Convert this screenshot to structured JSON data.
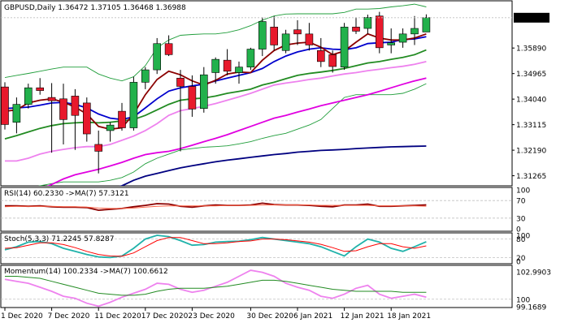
{
  "colors": {
    "bull": "#22b14c",
    "bear": "#e8192c",
    "candle_outline": "#000000",
    "bb": "#1f9d3a",
    "ma_red": "#8b0000",
    "ma_blue": "#0000cd",
    "ma_green": "#228b22",
    "ma_pink": "#ee82ee",
    "ma_magenta": "#e000e0",
    "ma_navy": "#000080",
    "price_label_bg": "#000000",
    "price_label_fg": "#ffffff",
    "rsi_line": "#8b0000",
    "rsi_ma": "#ff6347",
    "stoch_main": "#20b2aa",
    "stoch_signal": "#ff0000",
    "mom_main": "#ee82ee",
    "mom_ma": "#228b22",
    "grid_dash": "#c0c0c0",
    "frame": "#000000"
  },
  "chart_data": [
    {
      "type": "candlestick",
      "title": "GBPUSD,Daily  1.36472 1.37105 1.36468 1.36988",
      "ylim": [
        1.309,
        1.376
      ],
      "yticks": [
        "1.36988",
        "1.35890",
        "1.34965",
        "1.34040",
        "1.33115",
        "1.32190",
        "1.31265"
      ],
      "last_price": "1.36988",
      "x_labels": [
        {
          "index": 0,
          "label": "1 Dec 2020"
        },
        {
          "index": 4,
          "label": "7 Dec 2020"
        },
        {
          "index": 8,
          "label": "11 Dec 2020"
        },
        {
          "index": 12,
          "label": "17 Dec 2020"
        },
        {
          "index": 16,
          "label": "23 Dec 2020"
        },
        {
          "index": 21,
          "label": "30 Dec 2020"
        },
        {
          "index": 25,
          "label": "6 Jan 2021"
        },
        {
          "index": 29,
          "label": "12 Jan 2021"
        },
        {
          "index": 33,
          "label": "18 Jan 2021"
        }
      ],
      "ohlc": [
        [
          1.3448,
          1.3465,
          1.3294,
          1.3312
        ],
        [
          1.332,
          1.341,
          1.328,
          1.3385
        ],
        [
          1.3385,
          1.346,
          1.337,
          1.3445
        ],
        [
          1.3445,
          1.348,
          1.342,
          1.3435
        ],
        [
          1.341,
          1.3462,
          1.321,
          1.3398
        ],
        [
          1.3405,
          1.346,
          1.324,
          1.333
        ],
        [
          1.3415,
          1.344,
          1.322,
          1.3345
        ],
        [
          1.339,
          1.341,
          1.325,
          1.3278
        ],
        [
          1.324,
          1.329,
          1.3135,
          1.3215
        ],
        [
          1.329,
          1.332,
          1.325,
          1.331
        ],
        [
          1.336,
          1.339,
          1.329,
          1.33
        ],
        [
          1.33,
          1.3485,
          1.329,
          1.3465
        ],
        [
          1.3465,
          1.352,
          1.344,
          1.351
        ],
        [
          1.351,
          1.3625,
          1.3495,
          1.3605
        ],
        [
          1.3605,
          1.3635,
          1.356,
          1.3565
        ],
        [
          1.348,
          1.351,
          1.3215,
          1.345
        ],
        [
          1.345,
          1.349,
          1.334,
          1.3368
        ],
        [
          1.337,
          1.352,
          1.3355,
          1.3492
        ],
        [
          1.35,
          1.3555,
          1.346,
          1.3548
        ],
        [
          1.3545,
          1.3585,
          1.349,
          1.3505
        ],
        [
          1.35,
          1.354,
          1.346,
          1.352
        ],
        [
          1.352,
          1.359,
          1.351,
          1.3585
        ],
        [
          1.3585,
          1.37,
          1.356,
          1.3685
        ],
        [
          1.3665,
          1.3705,
          1.358,
          1.36
        ],
        [
          1.358,
          1.3655,
          1.357,
          1.364
        ],
        [
          1.3655,
          1.369,
          1.36,
          1.364
        ],
        [
          1.364,
          1.368,
          1.358,
          1.36
        ],
        [
          1.358,
          1.3625,
          1.352,
          1.354
        ],
        [
          1.3565,
          1.358,
          1.35,
          1.3522
        ],
        [
          1.352,
          1.368,
          1.351,
          1.3665
        ],
        [
          1.3665,
          1.37,
          1.364,
          1.365
        ],
        [
          1.366,
          1.371,
          1.364,
          1.37
        ],
        [
          1.3705,
          1.372,
          1.357,
          1.359
        ],
        [
          1.36,
          1.366,
          1.357,
          1.3608
        ],
        [
          1.361,
          1.366,
          1.359,
          1.364
        ],
        [
          1.364,
          1.3705,
          1.36,
          1.366
        ],
        [
          1.3647,
          1.3711,
          1.3647,
          1.3699
        ]
      ],
      "indicators": {
        "bb_upper": [
          1.3482,
          1.349,
          1.3497,
          1.3505,
          1.3513,
          1.352,
          1.352,
          1.352,
          1.3495,
          1.348,
          1.347,
          1.3485,
          1.3525,
          1.359,
          1.3618,
          1.3635,
          1.3638,
          1.364,
          1.364,
          1.3645,
          1.3655,
          1.367,
          1.369,
          1.3705,
          1.3712,
          1.3713,
          1.3713,
          1.3713,
          1.3713,
          1.3718,
          1.373,
          1.373,
          1.3732,
          1.3738,
          1.3742,
          1.3748,
          1.3738
        ],
        "bb_lower": [
          1.3068,
          1.3072,
          1.3082,
          1.309,
          1.3098,
          1.3104,
          1.3104,
          1.3104,
          1.3104,
          1.311,
          1.312,
          1.314,
          1.317,
          1.319,
          1.3205,
          1.322,
          1.3225,
          1.323,
          1.3232,
          1.3235,
          1.3242,
          1.325,
          1.3262,
          1.3272,
          1.328,
          1.3295,
          1.331,
          1.333,
          1.337,
          1.341,
          1.342,
          1.342,
          1.342,
          1.342,
          1.3425,
          1.344,
          1.346
        ],
        "ma_red": [
          1.336,
          1.3365,
          1.339,
          1.34,
          1.3405,
          1.3393,
          1.3375,
          1.335,
          1.3305,
          1.3295,
          1.33,
          1.335,
          1.342,
          1.3475,
          1.3505,
          1.3492,
          1.347,
          1.3455,
          1.3472,
          1.3495,
          1.3502,
          1.35,
          1.3545,
          1.358,
          1.36,
          1.3607,
          1.361,
          1.3592,
          1.3565,
          1.3578,
          1.361,
          1.364,
          1.3625,
          1.3618,
          1.3618,
          1.3625,
          1.364
        ],
        "ma_blue": [
          1.337,
          1.3372,
          1.3375,
          1.3382,
          1.339,
          1.3392,
          1.3385,
          1.3372,
          1.335,
          1.3335,
          1.333,
          1.334,
          1.3372,
          1.3405,
          1.3433,
          1.3445,
          1.3452,
          1.3458,
          1.347,
          1.348,
          1.349,
          1.35,
          1.3515,
          1.354,
          1.356,
          1.3575,
          1.3585,
          1.359,
          1.3585,
          1.3583,
          1.359,
          1.3605,
          1.3608,
          1.361,
          1.362,
          1.3622,
          1.363
        ],
        "ma_green": [
          1.326,
          1.3272,
          1.3285,
          1.3298,
          1.3308,
          1.3315,
          1.3318,
          1.332,
          1.3318,
          1.332,
          1.3325,
          1.333,
          1.3345,
          1.3365,
          1.3385,
          1.34,
          1.3405,
          1.3408,
          1.3415,
          1.3425,
          1.3432,
          1.344,
          1.3455,
          1.3465,
          1.3478,
          1.349,
          1.3497,
          1.3502,
          1.3508,
          1.3515,
          1.3525,
          1.3535,
          1.354,
          1.3548,
          1.3555,
          1.3565,
          1.3582
        ],
        "ma_pink": [
          1.318,
          1.318,
          1.319,
          1.3205,
          1.3215,
          1.3222,
          1.3228,
          1.3232,
          1.3232,
          1.324,
          1.3255,
          1.327,
          1.329,
          1.3315,
          1.3345,
          1.3362,
          1.337,
          1.3378,
          1.3388,
          1.34,
          1.3412,
          1.3425,
          1.344,
          1.3455,
          1.3462,
          1.3468,
          1.3475,
          1.348,
          1.3488,
          1.3495,
          1.35,
          1.3507,
          1.3512,
          1.3518,
          1.3523,
          1.353,
          1.354
        ],
        "ma_magenta": [
          1.301,
          1.3035,
          1.3055,
          1.3075,
          1.3095,
          1.3115,
          1.313,
          1.314,
          1.315,
          1.3162,
          1.3175,
          1.319,
          1.3203,
          1.321,
          1.3215,
          1.3225,
          1.3237,
          1.325,
          1.3262,
          1.3275,
          1.329,
          1.3305,
          1.332,
          1.3335,
          1.3345,
          1.3357,
          1.3368,
          1.338,
          1.339,
          1.34,
          1.341,
          1.342,
          1.3432,
          1.3445,
          1.3458,
          1.347,
          1.348
        ],
        "ma_navy": [
          1.299,
          1.3,
          1.301,
          1.302,
          1.303,
          1.304,
          1.305,
          1.306,
          1.307,
          1.308,
          1.309,
          1.311,
          1.3125,
          1.3135,
          1.3145,
          1.3155,
          1.3163,
          1.317,
          1.3177,
          1.3183,
          1.3188,
          1.3193,
          1.3198,
          1.3203,
          1.3207,
          1.3212,
          1.3215,
          1.3218,
          1.322,
          1.3222,
          1.3225,
          1.3227,
          1.3229,
          1.3231,
          1.3232,
          1.3233,
          1.3234
        ]
      }
    },
    {
      "type": "line",
      "title": "RSI(14) 60.2330  ->MA(7) 57.3121",
      "ylim": [
        0,
        100
      ],
      "yticks": [
        "100",
        "70",
        "30",
        "0"
      ],
      "levels": [
        70,
        30
      ],
      "series": [
        {
          "values": [
            58,
            58,
            57,
            58,
            56,
            55,
            55,
            54,
            48,
            50,
            52,
            56,
            59,
            63,
            62,
            57,
            55,
            58,
            60,
            59,
            59,
            60,
            64,
            61,
            60,
            60,
            59,
            57,
            56,
            60,
            60,
            62,
            57,
            57,
            58,
            59,
            60.2
          ]
        },
        {
          "values": [
            56,
            57,
            57,
            57,
            57,
            56,
            56,
            55,
            53,
            52,
            52,
            53,
            55,
            57,
            58,
            58,
            58,
            58,
            58,
            59,
            59,
            59,
            60,
            60,
            60,
            60,
            60,
            59,
            59,
            59,
            59,
            59,
            58,
            58,
            58,
            58,
            57.3
          ]
        }
      ]
    },
    {
      "type": "line",
      "title": "Stoch(5,3,3) 71.2245 57.8287",
      "ylim": [
        0,
        100
      ],
      "yticks": [
        "100",
        "80",
        "20",
        "0"
      ],
      "levels": [
        80,
        20
      ],
      "series": [
        {
          "values": [
            45,
            55,
            70,
            72,
            65,
            50,
            40,
            30,
            22,
            20,
            25,
            50,
            80,
            92,
            88,
            75,
            60,
            62,
            70,
            72,
            73,
            78,
            85,
            80,
            75,
            70,
            65,
            55,
            40,
            25,
            55,
            80,
            70,
            50,
            40,
            55,
            71.2
          ]
        },
        {
          "values": [
            50,
            52,
            60,
            68,
            68,
            62,
            52,
            40,
            30,
            25,
            24,
            35,
            55,
            75,
            85,
            85,
            75,
            65,
            65,
            68,
            72,
            74,
            80,
            80,
            78,
            74,
            70,
            63,
            52,
            40,
            42,
            55,
            65,
            65,
            55,
            50,
            57.8
          ]
        }
      ]
    },
    {
      "type": "line",
      "title": "Momentum(14) 100.2334  ->MA(7) 100.6612",
      "ylim": [
        99.1689,
        103.4
      ],
      "yticks": [
        "102.9903",
        "100",
        "99.1689"
      ],
      "levels": [
        100
      ],
      "series": [
        {
          "values": [
            102.0,
            101.8,
            101.6,
            101.2,
            100.8,
            100.3,
            100.1,
            99.6,
            99.3,
            99.7,
            100.2,
            100.6,
            101.0,
            101.6,
            101.5,
            101.0,
            100.7,
            100.9,
            101.3,
            101.7,
            102.3,
            102.9,
            102.7,
            102.3,
            101.6,
            101.2,
            100.9,
            100.3,
            100.1,
            100.5,
            101.1,
            101.4,
            100.5,
            100.1,
            100.3,
            100.5,
            100.2
          ]
        },
        {
          "values": [
            102.3,
            102.3,
            102.2,
            102.1,
            101.8,
            101.5,
            101.2,
            100.9,
            100.6,
            100.5,
            100.4,
            100.4,
            100.5,
            100.8,
            101.0,
            101.1,
            101.1,
            101.1,
            101.2,
            101.3,
            101.5,
            101.7,
            101.9,
            101.9,
            101.8,
            101.6,
            101.4,
            101.2,
            101.0,
            100.9,
            100.8,
            100.8,
            100.8,
            100.8,
            100.7,
            100.7,
            100.7
          ]
        }
      ]
    }
  ]
}
